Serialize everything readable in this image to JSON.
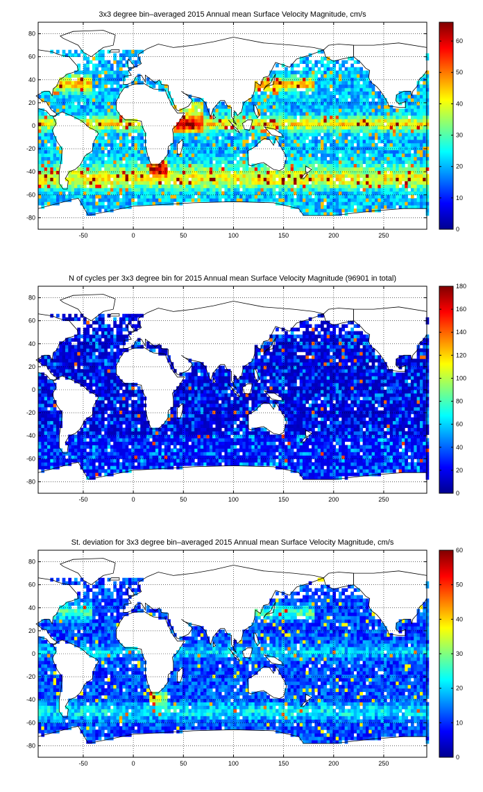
{
  "chart_data": [
    {
      "type": "heatmap",
      "title": "3x3 degree bin–averaged 2015 Annual mean Surface Velocity Magnitude, cm/s",
      "xlim": [
        -95,
        293
      ],
      "ylim": [
        -90,
        90
      ],
      "x_ticks": [
        -50,
        0,
        50,
        100,
        150,
        200,
        250
      ],
      "y_ticks": [
        80,
        60,
        40,
        20,
        0,
        -20,
        -40,
        -60,
        -80
      ],
      "x_tick_labels": [
        "-50",
        "0",
        "50",
        "100",
        "150",
        "200",
        "250"
      ],
      "y_tick_labels": [
        "80",
        "60",
        "40",
        "20",
        "0",
        "-20",
        "-40",
        "-60",
        "-80"
      ],
      "colorbar": {
        "min": 0,
        "max": 66,
        "ticks": [
          0,
          10,
          20,
          30,
          40,
          50,
          60
        ],
        "tick_labels": [
          "0",
          "10",
          "20",
          "30",
          "40",
          "50",
          "60"
        ],
        "colormap": "jet"
      },
      "bin_size_deg": 3,
      "field_model": "velocity",
      "grid": true,
      "coastlines": true
    },
    {
      "type": "heatmap",
      "title": "N of cycles per 3x3 degree bin for 2015 Annual mean Surface Velocity Magnitude (96901 in total)",
      "xlim": [
        -95,
        293
      ],
      "ylim": [
        -90,
        90
      ],
      "x_ticks": [
        -50,
        0,
        50,
        100,
        150,
        200,
        250
      ],
      "y_ticks": [
        80,
        60,
        40,
        20,
        0,
        -20,
        -40,
        -60,
        -80
      ],
      "x_tick_labels": [
        "-50",
        "0",
        "50",
        "100",
        "150",
        "200",
        "250"
      ],
      "y_tick_labels": [
        "80",
        "60",
        "40",
        "20",
        "0",
        "-20",
        "-40",
        "-60",
        "-80"
      ],
      "colorbar": {
        "min": 0,
        "max": 180,
        "ticks": [
          0,
          20,
          40,
          60,
          80,
          100,
          120,
          140,
          160,
          180
        ],
        "tick_labels": [
          "0",
          "20",
          "40",
          "60",
          "80",
          "100",
          "120",
          "140",
          "160",
          "180"
        ],
        "colormap": "jet"
      },
      "bin_size_deg": 3,
      "field_model": "count",
      "total_cycles": 96901,
      "grid": true,
      "coastlines": true
    },
    {
      "type": "heatmap",
      "title": "St. deviation for 3x3 degree bin–averaged 2015 Annual mean Surface Velocity Magnitude, cm/s",
      "xlim": [
        -95,
        293
      ],
      "ylim": [
        -90,
        90
      ],
      "x_ticks": [
        -50,
        0,
        50,
        100,
        150,
        200,
        250
      ],
      "y_ticks": [
        80,
        60,
        40,
        20,
        0,
        -20,
        -40,
        -60,
        -80
      ],
      "x_tick_labels": [
        "-50",
        "0",
        "50",
        "100",
        "150",
        "200",
        "250"
      ],
      "y_tick_labels": [
        "80",
        "60",
        "40",
        "20",
        "0",
        "-20",
        "-40",
        "-60",
        "-80"
      ],
      "colorbar": {
        "min": 0,
        "max": 60,
        "ticks": [
          0,
          10,
          20,
          30,
          40,
          50,
          60
        ],
        "tick_labels": [
          "0",
          "10",
          "20",
          "30",
          "40",
          "50",
          "60"
        ],
        "colormap": "jet"
      },
      "bin_size_deg": 3,
      "field_model": "stdev",
      "grid": true,
      "coastlines": true
    }
  ]
}
